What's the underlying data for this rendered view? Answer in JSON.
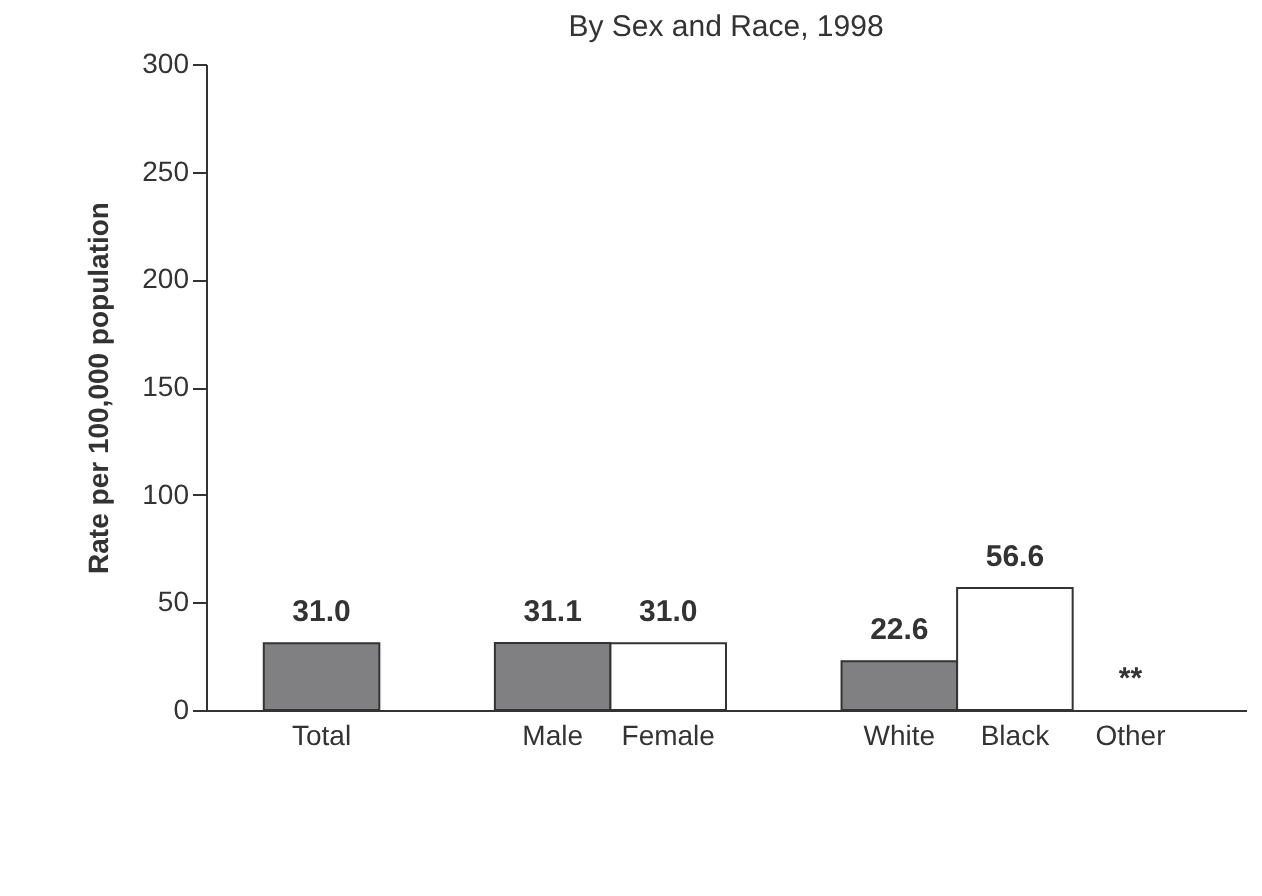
{
  "chart_data": {
    "type": "bar",
    "title": "By Sex and Race, 1998",
    "ylabel": "Rate per 100,000 population",
    "categories": [
      "Total",
      null,
      "Male",
      "Female",
      null,
      "White",
      "Black",
      "Other"
    ],
    "values": [
      31.0,
      null,
      31.1,
      31.0,
      null,
      22.6,
      56.6,
      null
    ],
    "colors": [
      "#808083",
      null,
      "#808083",
      "#ffffff",
      null,
      "#808083",
      "#ffffff",
      null
    ],
    "value_labels": [
      "31.0",
      null,
      "31.1",
      "31.0",
      null,
      "22.6",
      "56.6",
      "**"
    ],
    "ylim": [
      0,
      300
    ],
    "yticks": [
      0,
      50,
      100,
      150,
      200,
      250,
      300
    ],
    "grid": false
  }
}
